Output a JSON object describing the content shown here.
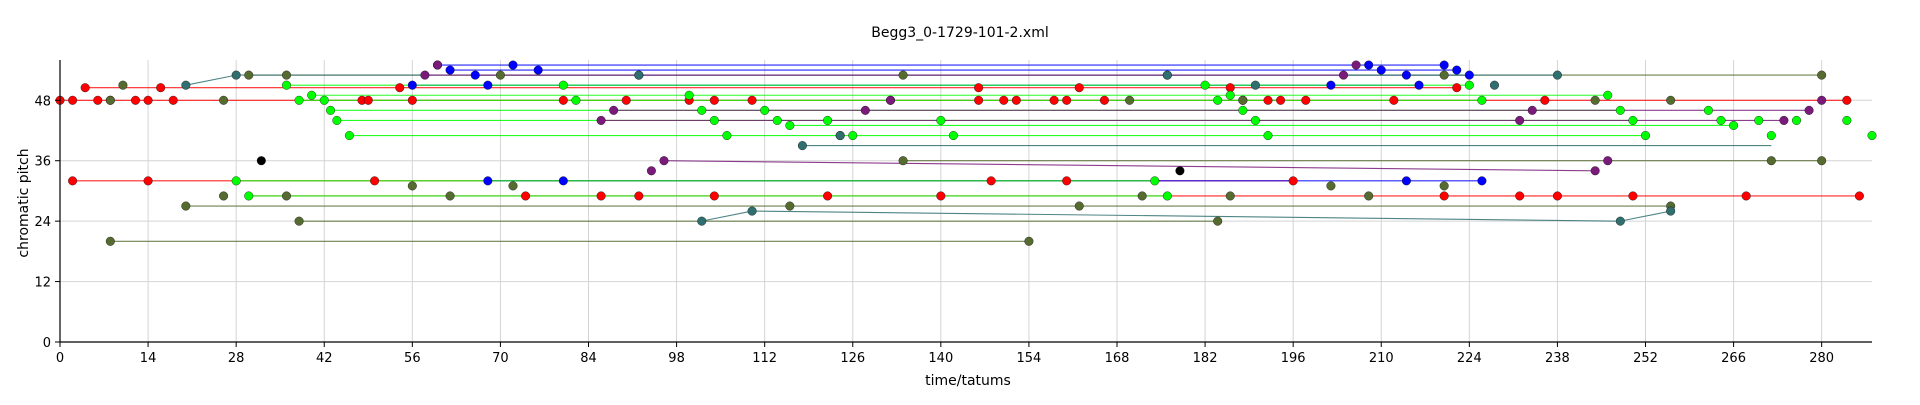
{
  "chart_data": {
    "type": "scatter",
    "title": "Begg3_0-1729-101-2.xml",
    "xlabel": "time/tatums",
    "ylabel": "chromatic pitch",
    "xlim": [
      0,
      288
    ],
    "ylim": [
      0,
      56
    ],
    "x_ticks": [
      0,
      14,
      28,
      42,
      56,
      70,
      84,
      98,
      112,
      126,
      140,
      154,
      168,
      182,
      196,
      210,
      224,
      238,
      252,
      266,
      280
    ],
    "y_ticks": [
      0,
      12,
      24,
      36,
      48
    ],
    "grid": true,
    "legend": "none",
    "series": [
      {
        "color": "#ff0000",
        "points": [
          [
            0,
            48
          ],
          [
            2,
            48
          ],
          [
            4,
            50.5
          ],
          [
            6,
            48
          ],
          [
            8,
            48
          ],
          [
            12,
            48
          ],
          [
            14,
            48
          ],
          [
            16,
            50.5
          ],
          [
            18,
            48
          ],
          [
            48,
            48
          ],
          [
            49,
            48
          ],
          [
            54,
            50.5
          ],
          [
            56,
            48
          ],
          [
            80,
            48
          ],
          [
            90,
            48
          ],
          [
            100,
            48
          ],
          [
            104,
            48
          ],
          [
            110,
            48
          ],
          [
            146,
            50.5
          ],
          [
            146,
            48
          ],
          [
            150,
            48
          ],
          [
            152,
            48
          ],
          [
            158,
            48
          ],
          [
            160,
            48
          ],
          [
            162,
            50.5
          ],
          [
            166,
            48
          ],
          [
            186,
            50.5
          ],
          [
            188,
            48
          ],
          [
            192,
            48
          ],
          [
            194,
            48
          ],
          [
            198,
            48
          ],
          [
            212,
            48
          ],
          [
            222,
            50.5
          ],
          [
            236,
            48
          ],
          [
            284,
            48
          ]
        ]
      },
      {
        "color": "#ff0000",
        "points": [
          [
            2,
            32
          ],
          [
            14,
            32
          ],
          [
            50,
            32
          ],
          [
            74,
            29
          ],
          [
            86,
            29
          ],
          [
            92,
            29
          ],
          [
            104,
            29
          ],
          [
            122,
            29
          ],
          [
            140,
            29
          ],
          [
            148,
            32
          ],
          [
            160,
            32
          ],
          [
            196,
            32
          ],
          [
            220,
            29
          ],
          [
            232,
            29
          ],
          [
            238,
            29
          ],
          [
            250,
            29
          ],
          [
            268,
            29
          ],
          [
            286,
            29
          ]
        ]
      },
      {
        "color": "#0000ff",
        "points": [
          [
            56,
            51
          ],
          [
            60,
            55
          ],
          [
            62,
            54
          ],
          [
            66,
            53
          ],
          [
            68,
            51
          ],
          [
            72,
            55
          ],
          [
            76,
            54
          ],
          [
            92,
            53
          ],
          [
            202,
            51
          ],
          [
            208,
            55
          ],
          [
            210,
            54
          ],
          [
            214,
            53
          ],
          [
            216,
            51
          ],
          [
            220,
            55
          ],
          [
            222,
            54
          ],
          [
            224,
            53
          ],
          [
            68,
            32
          ],
          [
            80,
            32
          ],
          [
            214,
            32
          ],
          [
            226,
            32
          ]
        ]
      },
      {
        "color": "#00ff00",
        "points": [
          [
            36,
            51
          ],
          [
            38,
            48
          ],
          [
            40,
            49
          ],
          [
            42,
            48
          ],
          [
            43,
            46
          ],
          [
            44,
            44
          ],
          [
            46,
            41
          ],
          [
            80,
            51
          ],
          [
            82,
            48
          ],
          [
            100,
            49
          ],
          [
            102,
            46
          ],
          [
            104,
            44
          ],
          [
            106,
            41
          ],
          [
            112,
            46
          ],
          [
            114,
            44
          ],
          [
            116,
            43
          ],
          [
            122,
            44
          ],
          [
            124,
            41
          ],
          [
            126,
            41
          ],
          [
            140,
            44
          ],
          [
            142,
            41
          ],
          [
            182,
            51
          ],
          [
            184,
            48
          ],
          [
            186,
            49
          ],
          [
            188,
            46
          ],
          [
            190,
            44
          ],
          [
            192,
            41
          ],
          [
            224,
            51
          ],
          [
            226,
            48
          ],
          [
            246,
            49
          ],
          [
            248,
            46
          ],
          [
            250,
            44
          ],
          [
            252,
            41
          ],
          [
            262,
            46
          ],
          [
            264,
            44
          ],
          [
            266,
            43
          ],
          [
            270,
            44
          ],
          [
            272,
            41
          ],
          [
            276,
            44
          ],
          [
            284,
            44
          ],
          [
            288,
            41
          ],
          [
            28,
            32
          ],
          [
            30,
            29
          ],
          [
            174,
            32
          ],
          [
            176,
            29
          ]
        ]
      },
      {
        "color": "#556b2f",
        "points": [
          [
            8,
            20
          ],
          [
            154,
            20
          ],
          [
            30,
            53
          ],
          [
            36,
            53
          ],
          [
            70,
            53
          ],
          [
            134,
            53
          ],
          [
            176,
            53
          ],
          [
            220,
            53
          ],
          [
            280,
            53
          ],
          [
            8,
            48
          ],
          [
            10,
            51
          ],
          [
            26,
            48
          ],
          [
            132,
            48
          ],
          [
            170,
            48
          ],
          [
            188,
            48
          ],
          [
            244,
            48
          ],
          [
            256,
            48
          ],
          [
            26,
            29
          ],
          [
            36,
            29
          ],
          [
            56,
            31
          ],
          [
            62,
            29
          ],
          [
            72,
            31
          ],
          [
            116,
            27
          ],
          [
            134,
            36
          ],
          [
            162,
            27
          ],
          [
            172,
            29
          ],
          [
            186,
            29
          ],
          [
            202,
            31
          ],
          [
            208,
            29
          ],
          [
            220,
            31
          ],
          [
            256,
            27
          ],
          [
            38,
            24
          ],
          [
            184,
            24
          ],
          [
            272,
            36
          ],
          [
            280,
            36
          ],
          [
            20,
            27
          ]
        ]
      },
      {
        "color": "#2f6f6f",
        "points": [
          [
            20,
            51
          ],
          [
            28,
            53
          ],
          [
            92,
            53
          ],
          [
            124,
            41
          ],
          [
            118,
            39
          ],
          [
            176,
            53
          ],
          [
            190,
            51
          ],
          [
            228,
            51
          ],
          [
            238,
            53
          ],
          [
            102,
            24
          ],
          [
            110,
            26
          ],
          [
            248,
            24
          ],
          [
            256,
            26
          ]
        ]
      },
      {
        "color": "#7a1a7a",
        "points": [
          [
            58,
            53
          ],
          [
            60,
            55
          ],
          [
            86,
            44
          ],
          [
            88,
            46
          ],
          [
            94,
            34
          ],
          [
            96,
            36
          ],
          [
            128,
            46
          ],
          [
            132,
            48
          ],
          [
            204,
            53
          ],
          [
            206,
            55
          ],
          [
            232,
            44
          ],
          [
            234,
            46
          ],
          [
            244,
            34
          ],
          [
            246,
            36
          ],
          [
            274,
            44
          ],
          [
            278,
            46
          ],
          [
            280,
            48
          ]
        ]
      },
      {
        "color": "#000000",
        "points": [
          [
            32,
            36
          ],
          [
            178,
            34
          ]
        ]
      }
    ],
    "lines": [
      {
        "color": "#ff0000",
        "from": [
          0,
          48
        ],
        "to": [
          284,
          48
        ]
      },
      {
        "color": "#ff0000",
        "from": [
          4,
          50.5
        ],
        "to": [
          222,
          50.5
        ]
      },
      {
        "color": "#ff0000",
        "from": [
          2,
          32
        ],
        "to": [
          196,
          32
        ]
      },
      {
        "color": "#ff0000",
        "from": [
          30,
          29
        ],
        "to": [
          286,
          29
        ]
      },
      {
        "color": "#0000ff",
        "from": [
          60,
          55
        ],
        "to": [
          220,
          55
        ]
      },
      {
        "color": "#0000ff",
        "from": [
          62,
          54
        ],
        "to": [
          222,
          54
        ]
      },
      {
        "color": "#0000ff",
        "from": [
          66,
          53
        ],
        "to": [
          224,
          53
        ]
      },
      {
        "color": "#0000ff",
        "from": [
          56,
          51
        ],
        "to": [
          216,
          51
        ]
      },
      {
        "color": "#0000ff",
        "from": [
          68,
          32
        ],
        "to": [
          226,
          32
        ]
      },
      {
        "color": "#00ff00",
        "from": [
          36,
          51
        ],
        "to": [
          224,
          51
        ]
      },
      {
        "color": "#00ff00",
        "from": [
          38,
          48
        ],
        "to": [
          226,
          48
        ]
      },
      {
        "color": "#00ff00",
        "from": [
          40,
          49
        ],
        "to": [
          246,
          49
        ]
      },
      {
        "color": "#00ff00",
        "from": [
          43,
          46
        ],
        "to": [
          248,
          46
        ]
      },
      {
        "color": "#00ff00",
        "from": [
          44,
          44
        ],
        "to": [
          250,
          44
        ]
      },
      {
        "color": "#00ff00",
        "from": [
          46,
          41
        ],
        "to": [
          252,
          41
        ]
      },
      {
        "color": "#00ff00",
        "from": [
          116,
          43
        ],
        "to": [
          266,
          43
        ]
      },
      {
        "color": "#00ff00",
        "from": [
          30,
          29
        ],
        "to": [
          176,
          29
        ]
      },
      {
        "color": "#00ff00",
        "from": [
          28,
          32
        ],
        "to": [
          174,
          32
        ]
      },
      {
        "color": "#556b2f",
        "from": [
          8,
          20
        ],
        "to": [
          154,
          20
        ]
      },
      {
        "color": "#556b2f",
        "from": [
          30,
          53
        ],
        "to": [
          280,
          53
        ]
      },
      {
        "color": "#556b2f",
        "from": [
          38,
          24
        ],
        "to": [
          184,
          24
        ]
      },
      {
        "color": "#556b2f",
        "from": [
          20,
          27
        ],
        "to": [
          256,
          27
        ]
      },
      {
        "color": "#556b2f",
        "from": [
          134,
          36
        ],
        "to": [
          280,
          36
        ]
      },
      {
        "color": "#2f6f6f",
        "from": [
          20,
          51
        ],
        "to": [
          28,
          53
        ]
      },
      {
        "color": "#2f6f6f",
        "from": [
          28,
          53
        ],
        "to": [
          238,
          53
        ]
      },
      {
        "color": "#2f6f6f",
        "from": [
          102,
          24
        ],
        "to": [
          110,
          26
        ]
      },
      {
        "color": "#2f6f6f",
        "from": [
          110,
          26
        ],
        "to": [
          248,
          24
        ]
      },
      {
        "color": "#2f6f6f",
        "from": [
          248,
          24
        ],
        "to": [
          256,
          26
        ]
      },
      {
        "color": "#2f6f6f",
        "from": [
          118,
          39
        ],
        "to": [
          272,
          39
        ]
      },
      {
        "color": "#7a1a7a",
        "from": [
          58,
          53
        ],
        "to": [
          204,
          53
        ]
      },
      {
        "color": "#7a1a7a",
        "from": [
          86,
          44
        ],
        "to": [
          274,
          44
        ]
      },
      {
        "color": "#7a1a7a",
        "from": [
          88,
          46
        ],
        "to": [
          278,
          46
        ]
      },
      {
        "color": "#7a1a7a",
        "from": [
          96,
          36
        ],
        "to": [
          244,
          34
        ]
      }
    ]
  }
}
